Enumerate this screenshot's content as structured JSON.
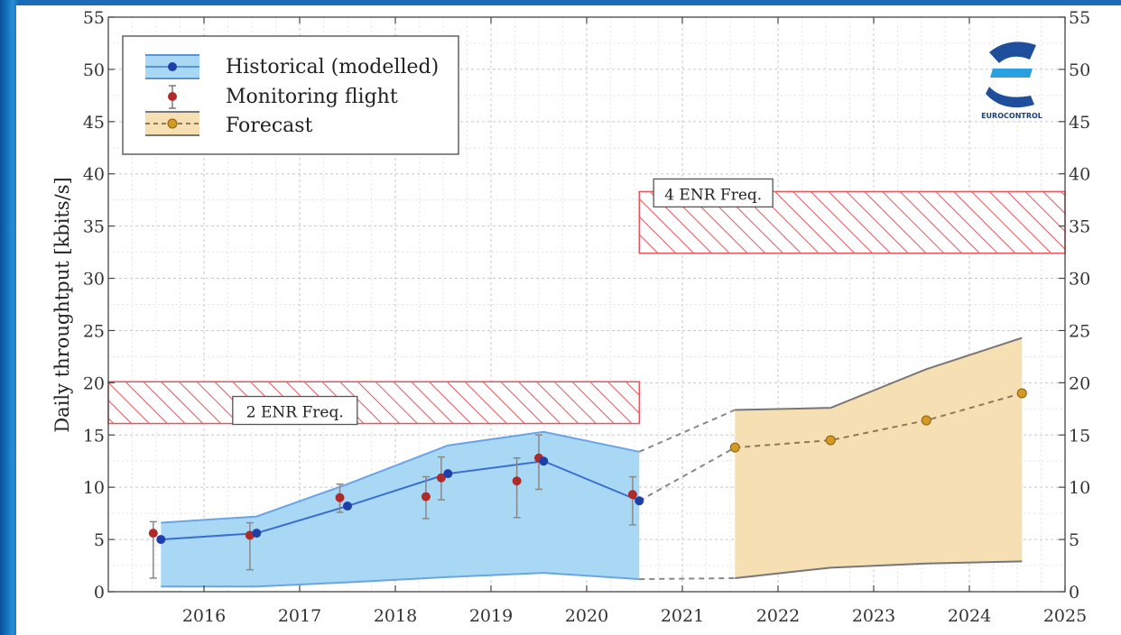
{
  "chart_data": {
    "type": "line",
    "title": "",
    "xlabel": "",
    "ylabel": "Daily throughtput [kbits/s]",
    "xlim": [
      2015.0,
      2025.0
    ],
    "ylim": [
      0,
      55
    ],
    "x_ticks": [
      "2016",
      "2017",
      "2018",
      "2019",
      "2020",
      "2021",
      "2022",
      "2023",
      "2024",
      "2025"
    ],
    "y_ticks": [
      "0",
      "5",
      "10",
      "15",
      "20",
      "25",
      "30",
      "35",
      "40",
      "45",
      "50",
      "55"
    ],
    "grid": true,
    "legend": {
      "position": "top-left",
      "entries": [
        "Historical (modelled)",
        "Monitoring flight",
        "Forecast"
      ]
    },
    "series": [
      {
        "name": "Historical (modelled)",
        "color": "#3a6fd0",
        "band_color": "#a9d8f5",
        "x": [
          2015.55,
          2016.55,
          2017.5,
          2018.55,
          2019.55,
          2020.55
        ],
        "values": [
          5.0,
          5.6,
          8.2,
          11.3,
          12.5,
          8.7
        ],
        "upper": [
          6.6,
          7.2,
          10.3,
          14.0,
          15.3,
          13.4
        ],
        "lower": [
          0.5,
          0.5,
          0.9,
          1.4,
          1.8,
          1.2
        ]
      },
      {
        "name": "Monitoring flight",
        "color": "#b02a2a",
        "x": [
          2015.47,
          2016.48,
          2017.42,
          2018.32,
          2018.48,
          2019.27,
          2019.5,
          2020.48
        ],
        "values": [
          5.6,
          5.4,
          9.0,
          9.1,
          10.9,
          10.6,
          12.8,
          9.3
        ],
        "err_low": [
          1.3,
          2.1,
          7.6,
          7.0,
          8.8,
          7.1,
          9.8,
          6.4
        ],
        "err_high": [
          6.7,
          6.6,
          10.3,
          11.0,
          12.9,
          12.8,
          15.0,
          11.0
        ]
      },
      {
        "name": "Forecast",
        "color": "#c98a10",
        "band_color": "#f7dfb4",
        "x": [
          2021.55,
          2022.55,
          2023.55,
          2024.55
        ],
        "values": [
          13.8,
          14.5,
          16.4,
          19.0
        ],
        "upper": [
          17.4,
          17.6,
          21.3,
          24.3
        ],
        "lower": [
          1.3,
          2.3,
          2.7,
          2.9
        ]
      }
    ],
    "connectors": {
      "from_x": 2020.55,
      "to_x": 2021.55,
      "upper": [
        13.4,
        17.4
      ],
      "mid": [
        8.7,
        13.8
      ],
      "lower": [
        1.2,
        1.3
      ]
    },
    "capacity_bands": [
      {
        "label": "2 ENR Freq.",
        "x0": 2015.0,
        "x1": 2020.55,
        "y0": 16.1,
        "y1": 20.1
      },
      {
        "label": "4 ENR Freq.",
        "x0": 2020.55,
        "x1": 2025.0,
        "y0": 32.4,
        "y1": 38.3
      }
    ],
    "logo": {
      "text": "EUROCONTROL"
    }
  }
}
